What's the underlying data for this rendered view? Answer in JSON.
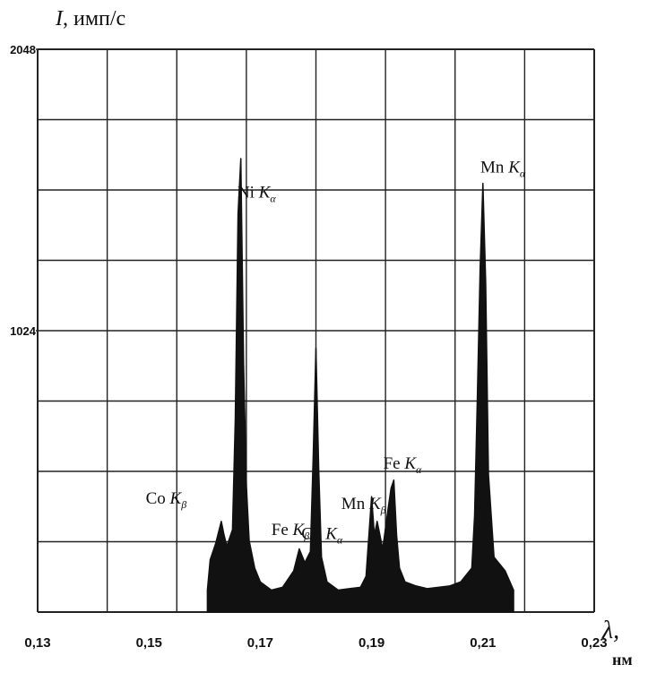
{
  "chart_data": {
    "type": "area",
    "title": "",
    "ylabel": {
      "symbol": "I",
      "text": ", имп/с"
    },
    "xlabel": {
      "symbol": "λ,",
      "unit": "нм"
    },
    "xlim": [
      0.13,
      0.23
    ],
    "ylim": [
      0,
      2048
    ],
    "grid": true,
    "x_ticks": [
      {
        "value": 0.13,
        "label": "0,13"
      },
      {
        "value": 0.15,
        "label": "0,15"
      },
      {
        "value": 0.17,
        "label": "0,17"
      },
      {
        "value": 0.19,
        "label": "0,19"
      },
      {
        "value": 0.21,
        "label": "0,21"
      },
      {
        "value": 0.23,
        "label": "0,23"
      }
    ],
    "y_ticks": [
      {
        "value": 1024,
        "label": "1024"
      },
      {
        "value": 2048,
        "label": "2048"
      }
    ],
    "series": [
      {
        "x": [
          0.1605,
          0.161,
          0.162,
          0.163,
          0.1635,
          0.164,
          0.165,
          0.1655,
          0.166,
          0.1665,
          0.167,
          0.1675,
          0.168,
          0.169,
          0.17,
          0.172,
          0.174,
          0.176,
          0.177,
          0.178,
          0.179,
          0.1795,
          0.18,
          0.1805,
          0.181,
          0.182,
          0.184,
          0.186,
          0.188,
          0.189,
          0.19,
          0.1905,
          0.191,
          0.192,
          0.193,
          0.1935,
          0.194,
          0.1945,
          0.195,
          0.196,
          0.198,
          0.2,
          0.202,
          0.204,
          0.206,
          0.208,
          0.2085,
          0.209,
          0.2095,
          0.21,
          0.2105,
          0.211,
          0.212,
          0.214,
          0.2155
        ],
        "y": [
          80,
          190,
          250,
          330,
          280,
          240,
          300,
          700,
          1450,
          1650,
          900,
          460,
          260,
          160,
          110,
          80,
          90,
          150,
          230,
          180,
          220,
          560,
          960,
          520,
          200,
          110,
          80,
          85,
          90,
          130,
          420,
          280,
          330,
          230,
          380,
          450,
          480,
          280,
          160,
          110,
          95,
          85,
          90,
          95,
          110,
          160,
          350,
          780,
          1250,
          1560,
          1200,
          500,
          200,
          150,
          80
        ]
      }
    ],
    "annotations": [
      {
        "element": "Co",
        "line": "K",
        "sub": "β",
        "x": 0.1632
      },
      {
        "element": "Ni",
        "line": "K",
        "sub": "α",
        "x": 0.1659
      },
      {
        "element": "Fe",
        "line": "K",
        "sub": "β",
        "x": 0.1765
      },
      {
        "element": "Co",
        "line": "K",
        "sub": "α",
        "x": 0.179
      },
      {
        "element": "Mn",
        "line": "K",
        "sub": "β",
        "x": 0.191
      },
      {
        "element": "Fe",
        "line": "K",
        "sub": "α",
        "x": 0.1937
      },
      {
        "element": "Mn",
        "line": "K",
        "sub": "α",
        "x": 0.2102
      }
    ]
  }
}
